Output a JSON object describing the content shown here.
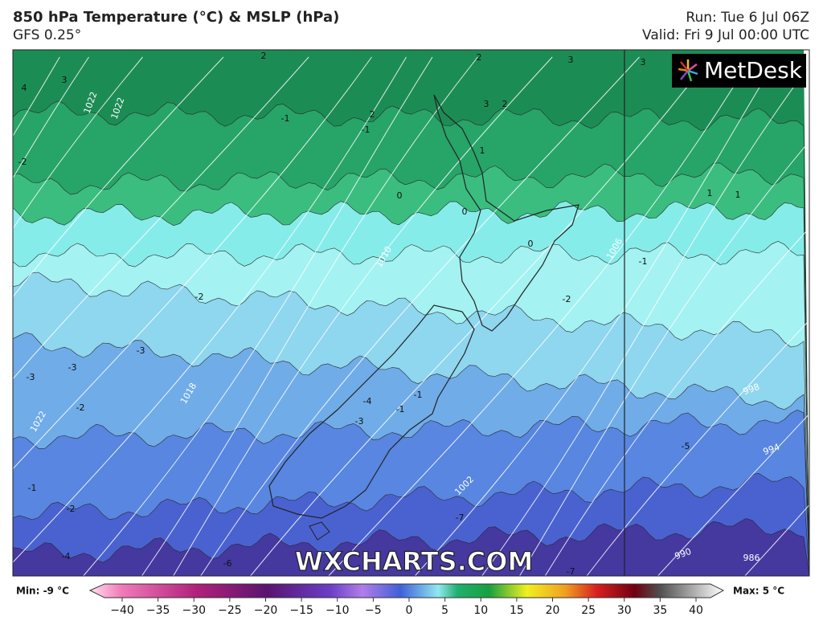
{
  "header": {
    "title": "850 hPa Temperature (°C) & MSLP (hPa)",
    "model": "GFS 0.25°",
    "run": "Run: Tue 6 Jul 06Z",
    "valid": "Valid: Fri 9 Jul 00:00 UTC"
  },
  "logo": "MetDesk",
  "watermark": "WXCHARTS.COM",
  "map": {
    "temperature_labels": [
      "-1",
      "-1",
      "-1",
      "-1",
      "-1",
      "-1",
      "-2",
      "-2",
      "-2",
      "-2",
      "-2",
      "-3",
      "-3",
      "-3",
      "-3",
      "-4",
      "-4",
      "-5",
      "-6",
      "-7",
      "-7",
      "0",
      "0",
      "0",
      "1",
      "1",
      "1",
      "2",
      "2",
      "2",
      "2",
      "3",
      "3",
      "3",
      "3",
      "4"
    ],
    "pressure_labels": [
      "1022",
      "1022",
      "1018",
      "1022",
      "1010",
      "1006",
      "1002",
      "998",
      "994",
      "990",
      "986"
    ]
  },
  "colorbar": {
    "min_label": "Min: -9 °C",
    "max_label": "Max: 5 °C",
    "ticks": [
      {
        "value": -40,
        "label": "−40"
      },
      {
        "value": -35,
        "label": "−35"
      },
      {
        "value": -30,
        "label": "−30"
      },
      {
        "value": -25,
        "label": "−25"
      },
      {
        "value": -20,
        "label": "−20"
      },
      {
        "value": -15,
        "label": "−15"
      },
      {
        "value": -10,
        "label": "−10"
      },
      {
        "value": -5,
        "label": "−5"
      },
      0,
      5,
      10,
      15,
      20,
      25,
      30,
      35,
      40
    ]
  }
}
